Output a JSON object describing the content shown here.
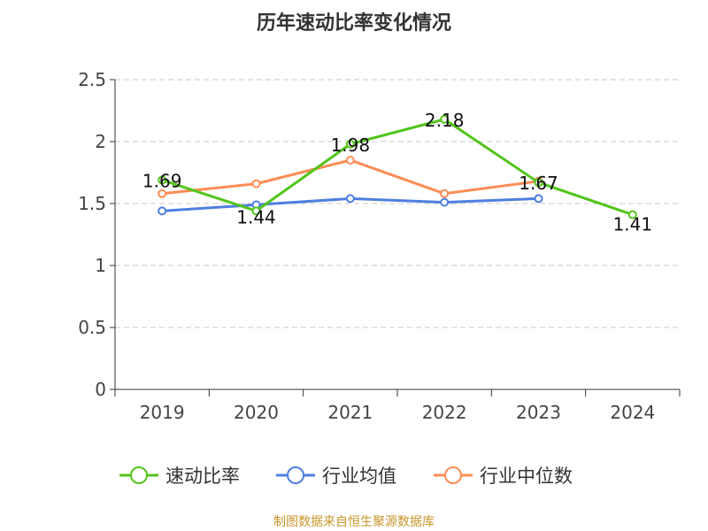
{
  "chart_data": {
    "type": "line",
    "title": "历年速动比率变化情况",
    "categories": [
      "2019",
      "2020",
      "2021",
      "2022",
      "2023",
      "2024"
    ],
    "ylim": [
      0,
      2.5
    ],
    "yticks": [
      "0",
      "0.5",
      "1",
      "1.5",
      "2",
      "2.5"
    ],
    "grid": true,
    "legend_position": "bottom",
    "series": [
      {
        "name": "速动比率",
        "color": "#52c41a",
        "values": [
          1.69,
          1.44,
          1.98,
          2.18,
          1.67,
          1.41
        ],
        "labels": [
          "1.69",
          "1.44",
          "1.98",
          "2.18",
          "1.67",
          "1.41"
        ]
      },
      {
        "name": "行业均值",
        "color": "#4e7fe0",
        "values": [
          1.44,
          1.49,
          1.54,
          1.51,
          1.54,
          null
        ]
      },
      {
        "name": "行业中位数",
        "color": "#ff8c55",
        "values": [
          1.58,
          1.66,
          1.85,
          1.58,
          1.68,
          null
        ]
      }
    ],
    "source": "制图数据来自恒生聚源数据库"
  }
}
